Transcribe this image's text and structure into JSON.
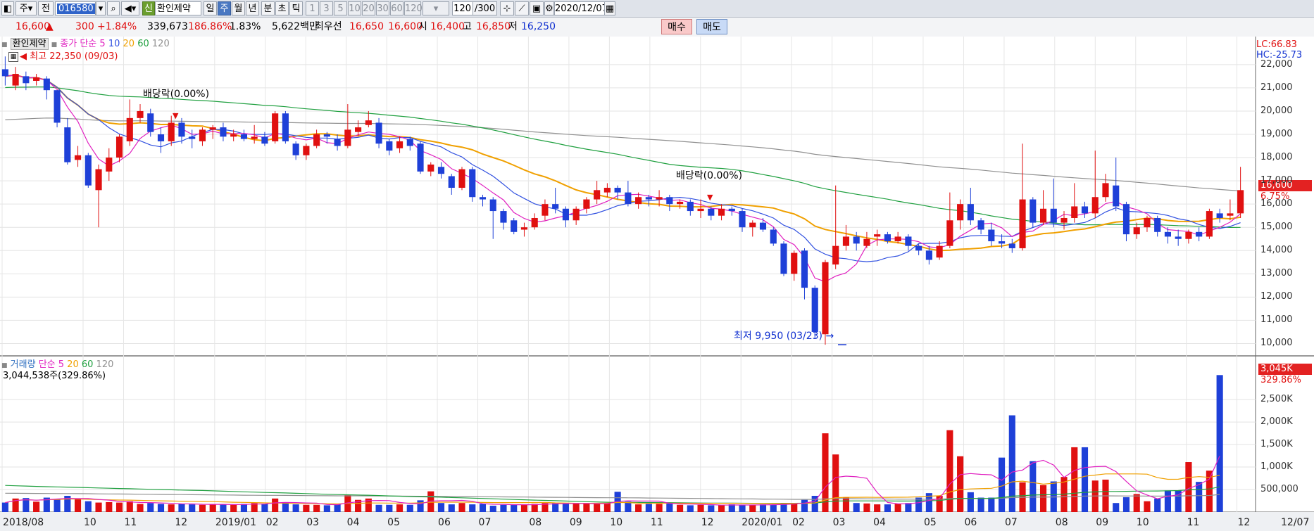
{
  "toolbar": {
    "type_sel": "주",
    "prev_label": "전",
    "code": "016580",
    "new_badge": "신",
    "stock_name": "환인제약",
    "periods": [
      "일",
      "주",
      "월",
      "년",
      "분",
      "초",
      "틱"
    ],
    "active_period": "주",
    "nums": [
      "1",
      "3",
      "5",
      "10",
      "20",
      "30",
      "60",
      "120"
    ],
    "count": "120",
    "count_total": "/300",
    "date": "2020/12/07"
  },
  "quote": {
    "price": "16,600",
    "change_arrow": "▲",
    "change": "300",
    "change_pct": "+1.84%",
    "volume": "339,673",
    "vol_ratio": "186.86%",
    "turnover": "1.83%",
    "amount": "5,622백만",
    "best_label": "최우선",
    "ask": "16,650",
    "bid": "16,600",
    "open_label": "시",
    "open": "16,400",
    "high_label": "고",
    "high": "16,850",
    "low_label": "저",
    "low": "16,250",
    "buy_button": "매수",
    "sell_button": "매도"
  },
  "price_panel": {
    "stock_label": "환인제약",
    "ma_label": "종가 단순",
    "ma_periods": [
      "5",
      "10",
      "20",
      "60",
      "120"
    ],
    "lc": "LC:66.83",
    "hc": "HC:-25.73",
    "max_label": "최고 22,350 (09/03)",
    "min_label": "최저 9,950 (03/23)",
    "dividend_1": "배당락(0.00%)",
    "dividend_2": "배당락(0.00%)",
    "last_price": "16,600",
    "last_pct": "6.75%",
    "y_ticks": [
      "22,000",
      "21,000",
      "20,000",
      "19,000",
      "18,000",
      "17,000",
      "16,000",
      "15,000",
      "14,000",
      "13,000",
      "12,000",
      "11,000",
      "10,000"
    ]
  },
  "volume_panel": {
    "title": "거래량",
    "ma_label": "단순",
    "ma_periods": [
      "5",
      "20",
      "60",
      "120"
    ],
    "last_volume": "3,044,538주(329.86%)",
    "tag_value": "3,045K",
    "tag_pct": "329.86%",
    "y_ticks": [
      "2,500K",
      "2,000K",
      "1,500K",
      "1,000K",
      "500,000"
    ]
  },
  "x_axis": [
    "2018/08",
    "10",
    "11",
    "12",
    "2019/01",
    "02",
    "03",
    "04",
    "05",
    "06",
    "07",
    "08",
    "09",
    "10",
    "11",
    "12",
    "2020/01",
    "02",
    "03",
    "04",
    "05",
    "06",
    "07",
    "08",
    "09",
    "10",
    "11",
    "12",
    "12/07"
  ],
  "colors": {
    "up": "#e01010",
    "down": "#1e40d8",
    "ma5": "#e020c0",
    "ma10": "#3050e0",
    "ma20": "#f0a000",
    "ma60": "#20a040",
    "ma120": "#909090"
  },
  "chart_data": {
    "type": "candlestick",
    "x_first": "2018/08",
    "x_last": "12/07",
    "ylim": [
      9500,
      22600
    ],
    "candles": [
      [
        21800,
        21500,
        22350,
        21100
      ],
      [
        21100,
        21600,
        21900,
        20900
      ],
      [
        21500,
        21200,
        21700,
        20900
      ],
      [
        21300,
        21450,
        21600,
        21100
      ],
      [
        21400,
        20900,
        21500,
        20500
      ],
      [
        20900,
        19500,
        20900,
        19300
      ],
      [
        19300,
        17800,
        19700,
        17700
      ],
      [
        17900,
        18100,
        18500,
        17600
      ],
      [
        18100,
        16800,
        18200,
        16700
      ],
      [
        16600,
        17500,
        17700,
        15000
      ],
      [
        17400,
        18000,
        18400,
        17000
      ],
      [
        18000,
        18900,
        19000,
        17800
      ],
      [
        18700,
        19700,
        20500,
        18500
      ],
      [
        19700,
        20000,
        20300,
        19500
      ],
      [
        19900,
        19100,
        20100,
        18900
      ],
      [
        19000,
        18700,
        19300,
        18200
      ],
      [
        18700,
        19500,
        19800,
        18500
      ],
      [
        19500,
        18900,
        19700,
        18600
      ],
      [
        18900,
        18800,
        19200,
        18400
      ],
      [
        18700,
        19200,
        19300,
        18500
      ],
      [
        19200,
        19300,
        19400,
        18800
      ],
      [
        19300,
        18900,
        19500,
        18700
      ],
      [
        18900,
        19000,
        19200,
        18700
      ],
      [
        19000,
        18800,
        19200,
        18700
      ],
      [
        18800,
        18900,
        19400,
        18600
      ],
      [
        18900,
        18600,
        19100,
        18500
      ],
      [
        18700,
        19900,
        20000,
        18600
      ],
      [
        19900,
        18700,
        20000,
        18600
      ],
      [
        18600,
        18100,
        18700,
        17900
      ],
      [
        18100,
        18500,
        18600,
        17900
      ],
      [
        18500,
        19000,
        19200,
        18400
      ],
      [
        19000,
        18900,
        19100,
        18600
      ],
      [
        18800,
        18500,
        19000,
        18300
      ],
      [
        18500,
        19200,
        20300,
        18400
      ],
      [
        19100,
        19300,
        19600,
        18900
      ],
      [
        19400,
        19600,
        20000,
        19300
      ],
      [
        19500,
        18600,
        19700,
        18400
      ],
      [
        18700,
        18300,
        18800,
        18100
      ],
      [
        18400,
        18700,
        18900,
        18200
      ],
      [
        18800,
        18500,
        18900,
        18300
      ],
      [
        18600,
        17400,
        18700,
        17300
      ],
      [
        17400,
        17700,
        17800,
        17200
      ],
      [
        17600,
        17300,
        17800,
        17100
      ],
      [
        17200,
        16700,
        17300,
        16400
      ],
      [
        16700,
        17500,
        17600,
        16600
      ],
      [
        17500,
        16300,
        17600,
        16100
      ],
      [
        16300,
        16200,
        16400,
        15900
      ],
      [
        16200,
        15700,
        16300,
        14500
      ],
      [
        15700,
        15200,
        15800,
        14900
      ],
      [
        15300,
        14800,
        15400,
        14700
      ],
      [
        14900,
        15000,
        15200,
        14600
      ],
      [
        15000,
        15400,
        15600,
        14900
      ],
      [
        15500,
        16000,
        16200,
        15300
      ],
      [
        16000,
        15800,
        16700,
        15600
      ],
      [
        15800,
        15300,
        15900,
        15000
      ],
      [
        15300,
        15800,
        15900,
        15100
      ],
      [
        15800,
        16200,
        16300,
        15600
      ],
      [
        16200,
        16600,
        17000,
        16000
      ],
      [
        16500,
        16700,
        16900,
        16300
      ],
      [
        16700,
        16500,
        16800,
        16200
      ],
      [
        16500,
        16000,
        17000,
        15900
      ],
      [
        16000,
        16300,
        16500,
        15800
      ],
      [
        16300,
        16200,
        16400,
        15900
      ],
      [
        16200,
        16300,
        16600,
        15900
      ],
      [
        16300,
        16000,
        16400,
        15700
      ],
      [
        16000,
        16100,
        16200,
        15800
      ],
      [
        16100,
        15700,
        16200,
        15500
      ],
      [
        15700,
        15800,
        16200,
        15400
      ],
      [
        15800,
        15500,
        15900,
        15300
      ],
      [
        15500,
        15800,
        16000,
        15300
      ],
      [
        15800,
        15700,
        15900,
        15500
      ],
      [
        15700,
        15000,
        15800,
        14800
      ],
      [
        15000,
        15200,
        15300,
        14600
      ],
      [
        15200,
        14900,
        15400,
        14800
      ],
      [
        14900,
        14300,
        15000,
        14200
      ],
      [
        14300,
        13000,
        14400,
        12900
      ],
      [
        13000,
        13900,
        14000,
        12700
      ],
      [
        14000,
        12400,
        14100,
        11900
      ],
      [
        12400,
        10500,
        12500,
        10200
      ],
      [
        10400,
        13500,
        13600,
        9950
      ],
      [
        13400,
        14200,
        16800,
        13200
      ],
      [
        14200,
        14600,
        15100,
        14000
      ],
      [
        14600,
        14300,
        14800,
        14000
      ],
      [
        14200,
        14500,
        14800,
        14100
      ],
      [
        14600,
        14700,
        14900,
        14200
      ],
      [
        14700,
        14400,
        14800,
        14300
      ],
      [
        14400,
        14600,
        14800,
        14300
      ],
      [
        14600,
        14200,
        14700,
        14000
      ],
      [
        14200,
        14000,
        14300,
        13800
      ],
      [
        14000,
        13600,
        14200,
        13400
      ],
      [
        13700,
        14200,
        14400,
        13600
      ],
      [
        14200,
        15300,
        16500,
        14100
      ],
      [
        15300,
        16000,
        16200,
        14900
      ],
      [
        16000,
        15300,
        16700,
        15100
      ],
      [
        15300,
        14900,
        15400,
        14700
      ],
      [
        14900,
        14400,
        15200,
        14200
      ],
      [
        14400,
        14300,
        14700,
        14100
      ],
      [
        14300,
        14100,
        14500,
        13900
      ],
      [
        14100,
        16200,
        18600,
        14000
      ],
      [
        16200,
        15200,
        16300,
        15000
      ],
      [
        15200,
        15800,
        16600,
        15100
      ],
      [
        15800,
        15200,
        17100,
        15000
      ],
      [
        15200,
        15400,
        15700,
        14900
      ],
      [
        15400,
        15900,
        16900,
        15200
      ],
      [
        15900,
        15600,
        16100,
        15400
      ],
      [
        15600,
        16300,
        18300,
        15400
      ],
      [
        16300,
        16900,
        17300,
        16100
      ],
      [
        16800,
        15900,
        18000,
        15700
      ],
      [
        16000,
        14700,
        16100,
        14400
      ],
      [
        14700,
        15000,
        15200,
        14500
      ],
      [
        15000,
        15400,
        15500,
        14800
      ],
      [
        15400,
        14800,
        15500,
        14600
      ],
      [
        14800,
        14600,
        15000,
        14300
      ],
      [
        14600,
        14500,
        14900,
        14200
      ],
      [
        14500,
        14800,
        14900,
        14300
      ],
      [
        14800,
        14600,
        15000,
        14400
      ],
      [
        14600,
        15700,
        15800,
        14500
      ],
      [
        15600,
        15400,
        15800,
        15200
      ],
      [
        15500,
        15600,
        16200,
        15300
      ],
      [
        15600,
        16600,
        17600,
        15400
      ]
    ],
    "volume_k": [
      210,
      300,
      310,
      230,
      320,
      290,
      360,
      290,
      240,
      210,
      220,
      210,
      240,
      180,
      200,
      180,
      170,
      180,
      170,
      160,
      170,
      170,
      160,
      180,
      200,
      180,
      300,
      200,
      170,
      160,
      160,
      150,
      170,
      380,
      270,
      300,
      160,
      160,
      170,
      160,
      260,
      460,
      200,
      170,
      200,
      170,
      180,
      140,
      160,
      160,
      170,
      180,
      200,
      200,
      190,
      180,
      180,
      180,
      200,
      450,
      230,
      170,
      180,
      180,
      210,
      160,
      150,
      160,
      150,
      150,
      170,
      150,
      160,
      170,
      160,
      200,
      190,
      270,
      360,
      1750,
      1280,
      330,
      200,
      190,
      170,
      170,
      180,
      200,
      320,
      420,
      360,
      1820,
      1240,
      440,
      320,
      320,
      1210,
      2150,
      660,
      1130,
      600,
      680,
      780,
      1440,
      1440,
      700,
      720,
      200,
      330,
      400,
      240,
      300,
      480,
      480,
      1110,
      670,
      920,
      3045
    ],
    "ma5": "pink line",
    "ma10": "blue line",
    "ma20": "orange line",
    "ma60": "green line",
    "ma120": "gray line"
  }
}
